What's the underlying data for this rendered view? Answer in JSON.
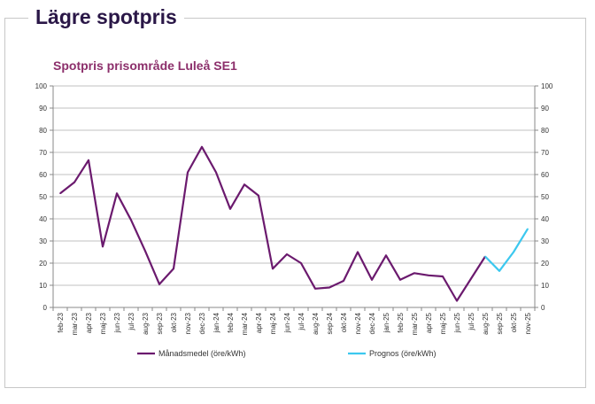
{
  "page": {
    "heading": "Lägre spotpris"
  },
  "chart_data": {
    "type": "line",
    "title": "Spotpris prisområde Luleå SE1",
    "xlabel": "",
    "ylabel": "",
    "ylim": [
      0,
      100
    ],
    "yticks": [
      0,
      10,
      20,
      30,
      40,
      50,
      60,
      70,
      80,
      90,
      100
    ],
    "grid": true,
    "legend_position": "bottom",
    "categories": [
      "feb-23",
      "mar-23",
      "apr-23",
      "maj-23",
      "jun-23",
      "jul-23",
      "aug-23",
      "sep-23",
      "okt-23",
      "nov-23",
      "dec-23",
      "jan-24",
      "feb-24",
      "mar-24",
      "apr-24",
      "maj-24",
      "jun-24",
      "jul-24",
      "aug-24",
      "sep-24",
      "okt-24",
      "nov-24",
      "dec-24",
      "jan-25",
      "feb-25",
      "mar-25",
      "apr-25",
      "maj-25",
      "jun-25",
      "jul-25",
      "aug-25",
      "sep-25",
      "okt-25",
      "nov-25"
    ],
    "series": [
      {
        "name": "Månadsmedel (öre/kWh)",
        "color": "#6b1a6e",
        "values": [
          51.5,
          56.5,
          66.5,
          27.5,
          51.5,
          39.5,
          25.5,
          10.5,
          17.5,
          61,
          72.5,
          61,
          44.5,
          55.5,
          50.5,
          17.5,
          24,
          20,
          8.5,
          9,
          12,
          25,
          12.5,
          23.5,
          12.5,
          15.5,
          14.5,
          14,
          3,
          13,
          23,
          null,
          null,
          null
        ]
      },
      {
        "name": "Prognos (öre/kWh)",
        "color": "#3cc8ef",
        "values": [
          null,
          null,
          null,
          null,
          null,
          null,
          null,
          null,
          null,
          null,
          null,
          null,
          null,
          null,
          null,
          null,
          null,
          null,
          null,
          null,
          null,
          null,
          null,
          null,
          null,
          null,
          null,
          null,
          null,
          null,
          23,
          16.5,
          25,
          35.5
        ]
      }
    ]
  }
}
